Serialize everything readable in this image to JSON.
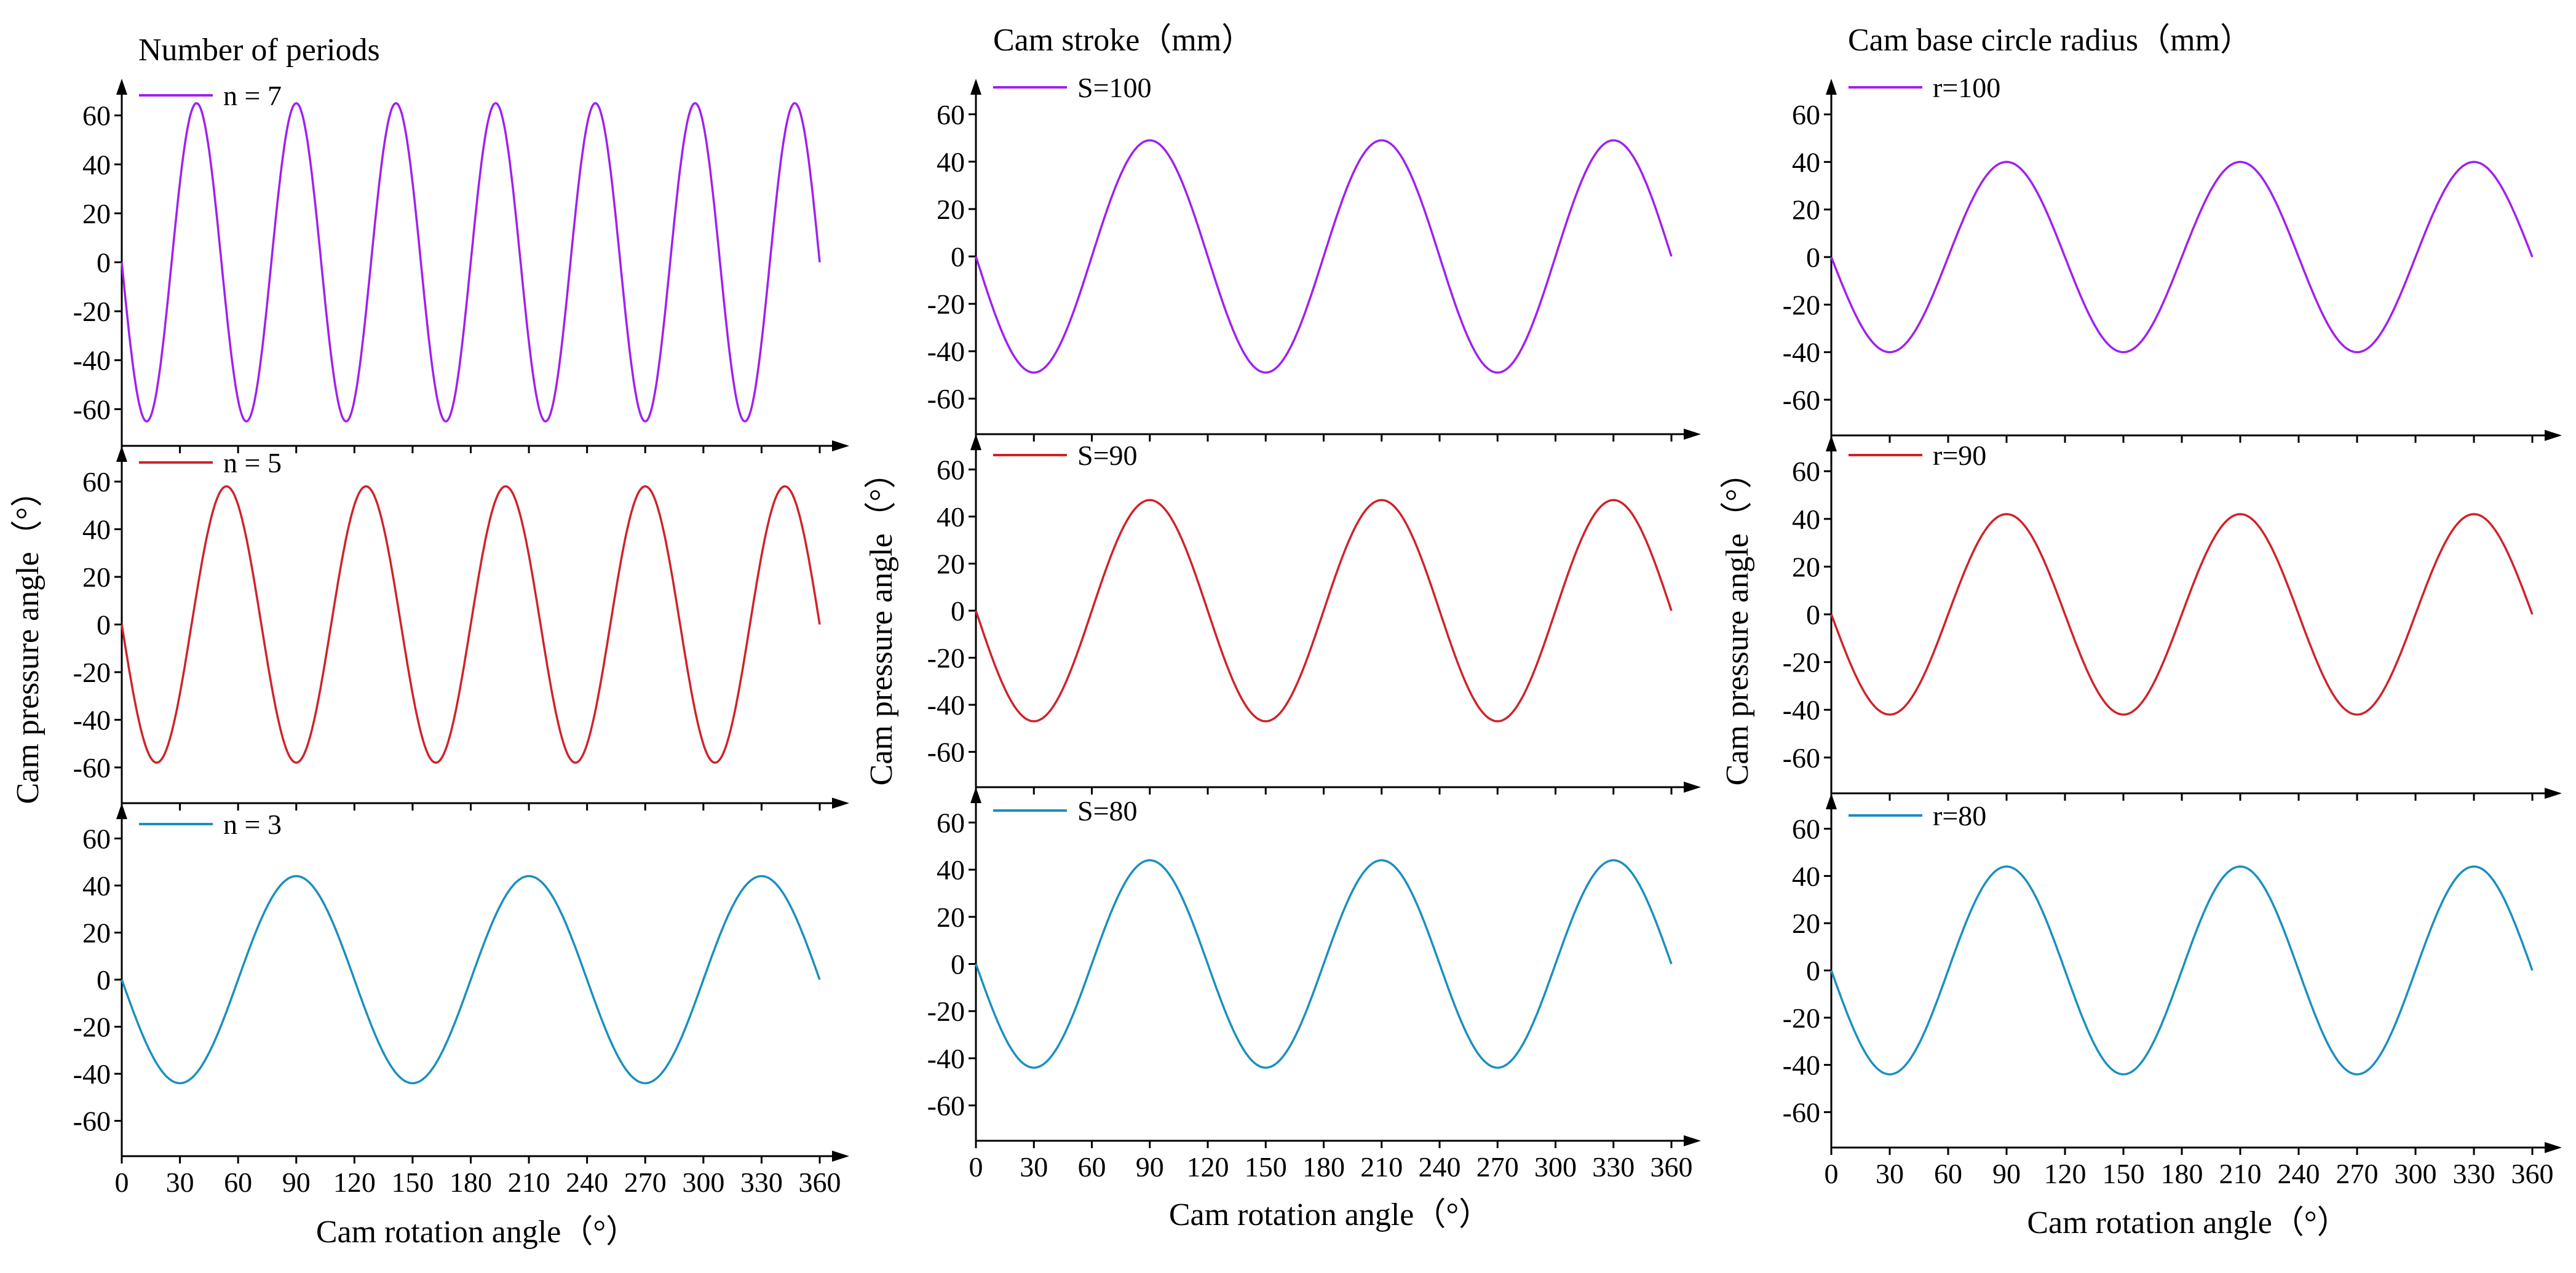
{
  "chart_data": [
    {
      "type": "line",
      "title": "Number of periods",
      "xlabel": "Cam rotation angle（°）",
      "ylabel": "Cam pressure angle（°）",
      "xticks": [
        "0",
        "30",
        "60",
        "90",
        "120",
        "150",
        "180",
        "210",
        "240",
        "270",
        "300",
        "330",
        "360"
      ],
      "xlim": [
        0,
        360
      ],
      "ylim": [
        -75,
        75
      ],
      "yticks": [
        "60",
        "40",
        "20",
        "0",
        "-20",
        "-40",
        "-60"
      ],
      "panels": [
        {
          "series": [
            {
              "name": "n = 7",
              "periods": 7,
              "amplitude": 65,
              "color": "#a020f0"
            }
          ]
        },
        {
          "series": [
            {
              "name": "n = 5",
              "periods": 5,
              "amplitude": 58,
              "color": "#d0222a"
            }
          ]
        },
        {
          "series": [
            {
              "name": "n = 3",
              "periods": 3,
              "amplitude": 44,
              "color": "#1a8fc0"
            }
          ]
        }
      ]
    },
    {
      "type": "line",
      "title": "Cam stroke（mm）",
      "xlabel": "Cam rotation angle（°）",
      "ylabel": "Cam pressure angle（°）",
      "xticks": [
        "0",
        "30",
        "60",
        "90",
        "120",
        "150",
        "180",
        "210",
        "240",
        "270",
        "300",
        "330",
        "360"
      ],
      "xlim": [
        0,
        360
      ],
      "ylim": [
        -75,
        75
      ],
      "yticks": [
        "60",
        "40",
        "20",
        "0",
        "-20",
        "-40",
        "-60"
      ],
      "panels": [
        {
          "series": [
            {
              "name": "S=100",
              "periods": 3,
              "amplitude": 49,
              "color": "#a020f0"
            }
          ]
        },
        {
          "series": [
            {
              "name": "S=90",
              "periods": 3,
              "amplitude": 47,
              "color": "#d0222a"
            }
          ]
        },
        {
          "series": [
            {
              "name": "S=80",
              "periods": 3,
              "amplitude": 44,
              "color": "#1a8fc0"
            }
          ]
        }
      ]
    },
    {
      "type": "line",
      "title": "Cam base circle radius（mm）",
      "xlabel": "Cam rotation angle（°）",
      "ylabel": "Cam pressure angle（°）",
      "xticks": [
        "0",
        "30",
        "60",
        "90",
        "120",
        "150",
        "180",
        "210",
        "240",
        "270",
        "300",
        "330",
        "360"
      ],
      "xlim": [
        0,
        360
      ],
      "ylim": [
        -75,
        75
      ],
      "yticks": [
        "60",
        "40",
        "20",
        "0",
        "-20",
        "-40",
        "-60"
      ],
      "panels": [
        {
          "series": [
            {
              "name": "r=100",
              "periods": 3,
              "amplitude": 40,
              "color": "#a020f0"
            }
          ]
        },
        {
          "series": [
            {
              "name": "r=90",
              "periods": 3,
              "amplitude": 42,
              "color": "#d0222a"
            }
          ]
        },
        {
          "series": [
            {
              "name": "r=80",
              "periods": 3,
              "amplitude": 44,
              "color": "#1a8fc0"
            }
          ]
        }
      ]
    }
  ]
}
